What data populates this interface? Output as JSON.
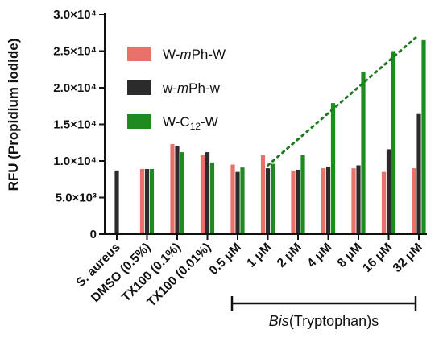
{
  "chart_data": {
    "type": "bar",
    "ylabel": "RFU (Propidium iodide)",
    "ylim": [
      0,
      30000
    ],
    "yticks": [
      {
        "value": 0,
        "label": "0"
      },
      {
        "value": 5000,
        "label": "5.0×10³"
      },
      {
        "value": 10000,
        "label": "1.0×10⁴"
      },
      {
        "value": 15000,
        "label": "1.5×10⁴"
      },
      {
        "value": 20000,
        "label": "2.0×10⁴"
      },
      {
        "value": 25000,
        "label": "2.5×10⁴"
      },
      {
        "value": 30000,
        "label": "3.0×10⁴"
      }
    ],
    "categories": [
      "S. aureus",
      "DMSO (0.5%)",
      "TX100 (0.1%)",
      "TX100 (0.01%)",
      "0.5 μM",
      "1 μM",
      "2 μM",
      "4 μM",
      "8 μM",
      "16 μM",
      "32 μM"
    ],
    "series": [
      {
        "name": "W-mPh-W",
        "name_parts": [
          "W-",
          "m",
          "Ph-W"
        ],
        "color": "#e8726a",
        "values": [
          null,
          8900,
          12300,
          10800,
          9500,
          10800,
          8700,
          9000,
          9000,
          8500,
          9000
        ]
      },
      {
        "name": "w-mPh-w",
        "name_parts": [
          "w-",
          "m",
          "Ph-w"
        ],
        "color": "#2b2b2b",
        "values": [
          8700,
          8900,
          12000,
          11200,
          8500,
          9000,
          8800,
          9200,
          9400,
          11600,
          16400
        ]
      },
      {
        "name": "W-C12-W",
        "name_parts": [
          "W-C",
          "12",
          "-W"
        ],
        "color": "#1f8a1f",
        "values": [
          null,
          8900,
          11200,
          9800,
          9100,
          9600,
          10800,
          17900,
          22200,
          25000,
          26500
        ]
      }
    ],
    "trendline": {
      "color": "#1f7a1f",
      "style": "dotted",
      "from": {
        "category": "1 μM",
        "value": 9400
      },
      "to": {
        "category": "32 μM",
        "value": 27200
      }
    },
    "bracket": {
      "from": "0.5 μM",
      "to": "32 μM",
      "label_italic": "Bis",
      "label_rest": "(Tryptophan)s"
    },
    "legend_position": "left"
  }
}
